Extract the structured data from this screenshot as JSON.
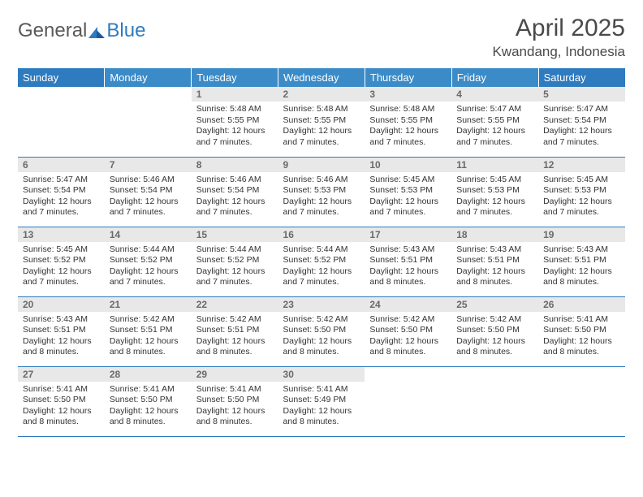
{
  "logo": {
    "text_gray": "General",
    "text_blue": "Blue"
  },
  "title": "April 2025",
  "location": "Kwandang, Indonesia",
  "header_colors": {
    "outer": "#2f7bbf",
    "inner": "#3b8bc8",
    "divider": "#2f7bbf",
    "daynum_bg": "#e8e8e8"
  },
  "weekdays": [
    "Sunday",
    "Monday",
    "Tuesday",
    "Wednesday",
    "Thursday",
    "Friday",
    "Saturday"
  ],
  "weeks": [
    [
      {
        "empty": true
      },
      {
        "empty": true
      },
      {
        "day": 1,
        "sunrise": "5:48 AM",
        "sunset": "5:55 PM",
        "daylight": "12 hours and 7 minutes."
      },
      {
        "day": 2,
        "sunrise": "5:48 AM",
        "sunset": "5:55 PM",
        "daylight": "12 hours and 7 minutes."
      },
      {
        "day": 3,
        "sunrise": "5:48 AM",
        "sunset": "5:55 PM",
        "daylight": "12 hours and 7 minutes."
      },
      {
        "day": 4,
        "sunrise": "5:47 AM",
        "sunset": "5:55 PM",
        "daylight": "12 hours and 7 minutes."
      },
      {
        "day": 5,
        "sunrise": "5:47 AM",
        "sunset": "5:54 PM",
        "daylight": "12 hours and 7 minutes."
      }
    ],
    [
      {
        "day": 6,
        "sunrise": "5:47 AM",
        "sunset": "5:54 PM",
        "daylight": "12 hours and 7 minutes."
      },
      {
        "day": 7,
        "sunrise": "5:46 AM",
        "sunset": "5:54 PM",
        "daylight": "12 hours and 7 minutes."
      },
      {
        "day": 8,
        "sunrise": "5:46 AM",
        "sunset": "5:54 PM",
        "daylight": "12 hours and 7 minutes."
      },
      {
        "day": 9,
        "sunrise": "5:46 AM",
        "sunset": "5:53 PM",
        "daylight": "12 hours and 7 minutes."
      },
      {
        "day": 10,
        "sunrise": "5:45 AM",
        "sunset": "5:53 PM",
        "daylight": "12 hours and 7 minutes."
      },
      {
        "day": 11,
        "sunrise": "5:45 AM",
        "sunset": "5:53 PM",
        "daylight": "12 hours and 7 minutes."
      },
      {
        "day": 12,
        "sunrise": "5:45 AM",
        "sunset": "5:53 PM",
        "daylight": "12 hours and 7 minutes."
      }
    ],
    [
      {
        "day": 13,
        "sunrise": "5:45 AM",
        "sunset": "5:52 PM",
        "daylight": "12 hours and 7 minutes."
      },
      {
        "day": 14,
        "sunrise": "5:44 AM",
        "sunset": "5:52 PM",
        "daylight": "12 hours and 7 minutes."
      },
      {
        "day": 15,
        "sunrise": "5:44 AM",
        "sunset": "5:52 PM",
        "daylight": "12 hours and 7 minutes."
      },
      {
        "day": 16,
        "sunrise": "5:44 AM",
        "sunset": "5:52 PM",
        "daylight": "12 hours and 7 minutes."
      },
      {
        "day": 17,
        "sunrise": "5:43 AM",
        "sunset": "5:51 PM",
        "daylight": "12 hours and 8 minutes."
      },
      {
        "day": 18,
        "sunrise": "5:43 AM",
        "sunset": "5:51 PM",
        "daylight": "12 hours and 8 minutes."
      },
      {
        "day": 19,
        "sunrise": "5:43 AM",
        "sunset": "5:51 PM",
        "daylight": "12 hours and 8 minutes."
      }
    ],
    [
      {
        "day": 20,
        "sunrise": "5:43 AM",
        "sunset": "5:51 PM",
        "daylight": "12 hours and 8 minutes."
      },
      {
        "day": 21,
        "sunrise": "5:42 AM",
        "sunset": "5:51 PM",
        "daylight": "12 hours and 8 minutes."
      },
      {
        "day": 22,
        "sunrise": "5:42 AM",
        "sunset": "5:51 PM",
        "daylight": "12 hours and 8 minutes."
      },
      {
        "day": 23,
        "sunrise": "5:42 AM",
        "sunset": "5:50 PM",
        "daylight": "12 hours and 8 minutes."
      },
      {
        "day": 24,
        "sunrise": "5:42 AM",
        "sunset": "5:50 PM",
        "daylight": "12 hours and 8 minutes."
      },
      {
        "day": 25,
        "sunrise": "5:42 AM",
        "sunset": "5:50 PM",
        "daylight": "12 hours and 8 minutes."
      },
      {
        "day": 26,
        "sunrise": "5:41 AM",
        "sunset": "5:50 PM",
        "daylight": "12 hours and 8 minutes."
      }
    ],
    [
      {
        "day": 27,
        "sunrise": "5:41 AM",
        "sunset": "5:50 PM",
        "daylight": "12 hours and 8 minutes."
      },
      {
        "day": 28,
        "sunrise": "5:41 AM",
        "sunset": "5:50 PM",
        "daylight": "12 hours and 8 minutes."
      },
      {
        "day": 29,
        "sunrise": "5:41 AM",
        "sunset": "5:50 PM",
        "daylight": "12 hours and 8 minutes."
      },
      {
        "day": 30,
        "sunrise": "5:41 AM",
        "sunset": "5:49 PM",
        "daylight": "12 hours and 8 minutes."
      },
      {
        "empty": true
      },
      {
        "empty": true
      },
      {
        "empty": true
      }
    ]
  ],
  "labels": {
    "sunrise": "Sunrise:",
    "sunset": "Sunset:",
    "daylight": "Daylight:"
  }
}
